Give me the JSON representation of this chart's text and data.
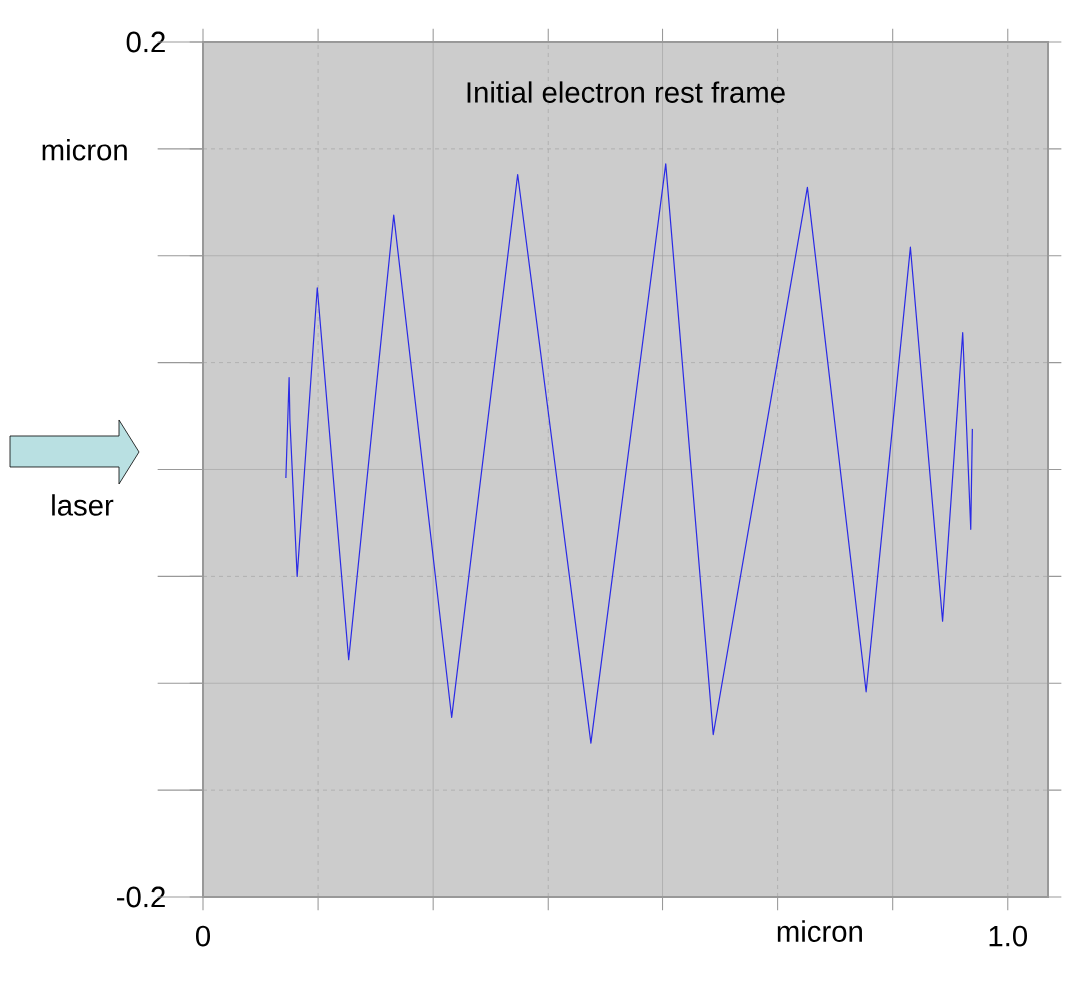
{
  "chart_data": {
    "type": "line",
    "title": "Initial electron rest frame",
    "xlabel": "micron",
    "ylabel": "micron",
    "annotations": [
      "laser"
    ],
    "x": [
      0.103,
      0.107,
      0.108,
      0.117,
      0.142,
      0.181,
      0.237,
      0.309,
      0.391,
      0.482,
      0.575,
      0.634,
      0.751,
      0.824,
      0.879,
      0.919,
      0.944,
      0.954,
      0.956
    ],
    "values": [
      -0.004,
      0.043,
      0.023,
      -0.05,
      0.085,
      -0.089,
      0.119,
      -0.116,
      0.138,
      -0.128,
      0.143,
      -0.124,
      0.132,
      -0.104,
      0.104,
      -0.071,
      0.064,
      -0.028,
      0.019
    ],
    "color": "#2a2ae6",
    "xlim": [
      0,
      1.05
    ],
    "xticks": [
      {
        "value": 0,
        "label": "0"
      },
      {
        "value": 0.143,
        "label": null
      },
      {
        "value": 0.286,
        "label": null
      },
      {
        "value": 0.429,
        "label": null
      },
      {
        "value": 0.571,
        "label": null
      },
      {
        "value": 0.714,
        "label": null
      },
      {
        "value": 0.857,
        "label": null
      },
      {
        "value": 1.0,
        "label": "1.0"
      }
    ],
    "ylim": [
      -0.2,
      0.2
    ],
    "yticks": [
      {
        "value": -0.2,
        "label": "-0.2"
      },
      {
        "value": -0.15,
        "label": null
      },
      {
        "value": -0.1,
        "label": null
      },
      {
        "value": -0.05,
        "label": null
      },
      {
        "value": 0,
        "label": null
      },
      {
        "value": 0.05,
        "label": null
      },
      {
        "value": 0.1,
        "label": null
      },
      {
        "value": 0.15,
        "label": null
      },
      {
        "value": 0.2,
        "label": "0.2"
      }
    ],
    "grid": true
  }
}
